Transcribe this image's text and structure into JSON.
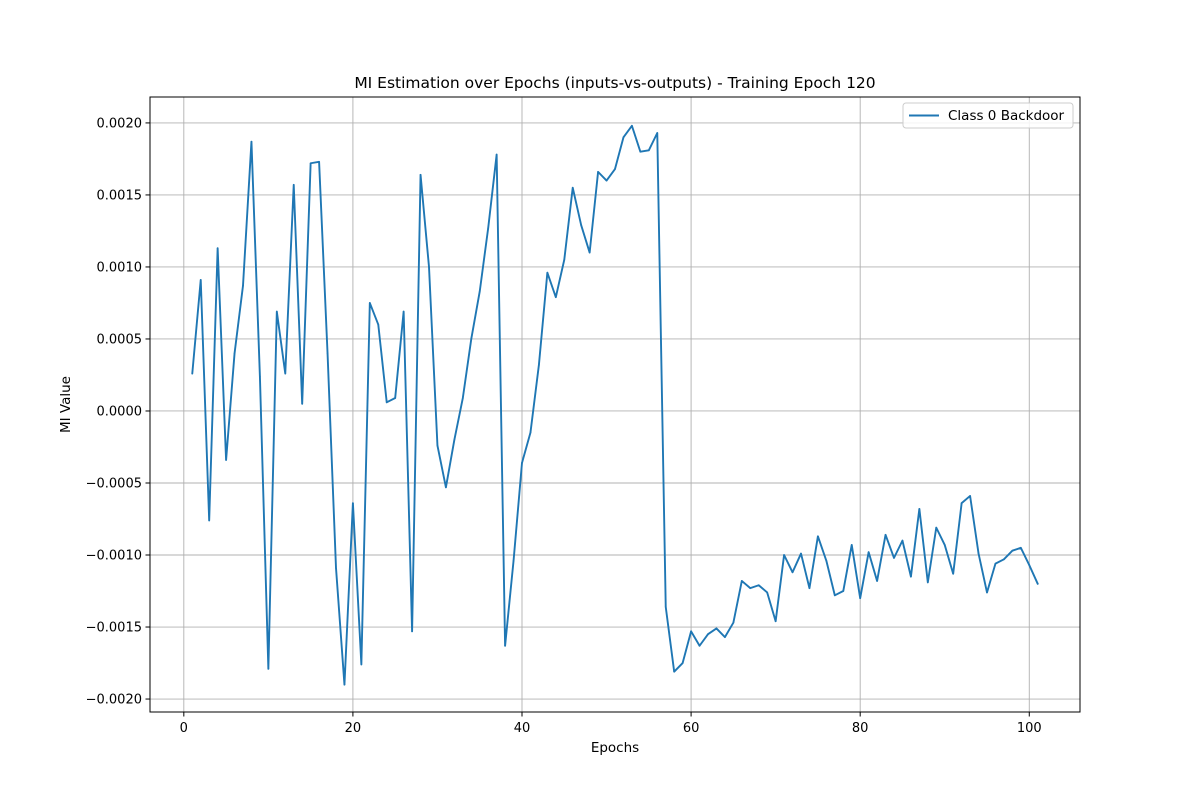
{
  "chart_data": {
    "type": "line",
    "title": "MI Estimation over Epochs (inputs-vs-outputs) - Training Epoch 120",
    "xlabel": "Epochs",
    "ylabel": "MI Value",
    "xlim": [
      -4,
      106
    ],
    "ylim": [
      -0.00209,
      0.00218
    ],
    "xticks": [
      0,
      20,
      40,
      60,
      80,
      100
    ],
    "xtick_labels": [
      "0",
      "20",
      "40",
      "60",
      "80",
      "100"
    ],
    "yticks": [
      -0.002,
      -0.0015,
      -0.001,
      -0.0005,
      0.0,
      0.0005,
      0.001,
      0.0015,
      0.002
    ],
    "ytick_labels": [
      "−0.0020",
      "−0.0015",
      "−0.0010",
      "−0.0005",
      "0.0000",
      "0.0005",
      "0.0010",
      "0.0015",
      "0.0020"
    ],
    "grid": true,
    "legend_position": "top-right",
    "series": [
      {
        "name": "Class 0 Backdoor",
        "color": "#1f77b4",
        "x": [
          1,
          2,
          3,
          4,
          5,
          6,
          7,
          8,
          9,
          10,
          11,
          12,
          13,
          14,
          15,
          16,
          17,
          18,
          19,
          20,
          21,
          22,
          23,
          24,
          25,
          26,
          27,
          28,
          29,
          30,
          31,
          32,
          33,
          34,
          35,
          36,
          37,
          38,
          39,
          40,
          41,
          42,
          43,
          44,
          45,
          46,
          47,
          48,
          49,
          50,
          51,
          52,
          53,
          54,
          55,
          56,
          57,
          58,
          59,
          60,
          61,
          62,
          63,
          64,
          65,
          66,
          67,
          68,
          69,
          70,
          71,
          72,
          73,
          74,
          75,
          76,
          77,
          78,
          79,
          80,
          81,
          82,
          83,
          84,
          85,
          86,
          87,
          88,
          89,
          90,
          91,
          92,
          93,
          94,
          95,
          96,
          97,
          98,
          99,
          100,
          101
        ],
        "y": [
          0.00026,
          0.00091,
          -0.00076,
          0.00113,
          -0.00034,
          0.0004,
          0.00087,
          0.00187,
          0.00024,
          -0.00179,
          0.00069,
          0.00026,
          0.00157,
          5e-05,
          0.00172,
          0.00173,
          0.0004,
          -0.00109,
          -0.0019,
          -0.00064,
          -0.00176,
          0.00075,
          0.0006,
          6e-05,
          9e-05,
          0.00069,
          -0.00153,
          0.00164,
          0.001,
          -0.00024,
          -0.00053,
          -0.0002,
          9e-05,
          0.0005,
          0.00083,
          0.00127,
          0.00178,
          -0.00163,
          -0.00104,
          -0.00036,
          -0.00015,
          0.00032,
          0.00096,
          0.00079,
          0.00105,
          0.00155,
          0.00129,
          0.0011,
          0.00166,
          0.0016,
          0.00168,
          0.0019,
          0.00198,
          0.0018,
          0.00181,
          0.00193,
          -0.00136,
          -0.00181,
          -0.00175,
          -0.00153,
          -0.00163,
          -0.00155,
          -0.00151,
          -0.00157,
          -0.00147,
          -0.00118,
          -0.00123,
          -0.00121,
          -0.00126,
          -0.00146,
          -0.001,
          -0.00112,
          -0.00099,
          -0.00123,
          -0.00087,
          -0.00104,
          -0.00128,
          -0.00125,
          -0.00093,
          -0.0013,
          -0.00098,
          -0.00118,
          -0.00086,
          -0.00102,
          -0.0009,
          -0.00115,
          -0.00068,
          -0.00119,
          -0.00081,
          -0.00093,
          -0.00113,
          -0.00064,
          -0.00059,
          -0.00099,
          -0.00126,
          -0.00106,
          -0.00103,
          -0.00097,
          -0.00095,
          -0.00107,
          -0.0012
        ]
      }
    ]
  }
}
